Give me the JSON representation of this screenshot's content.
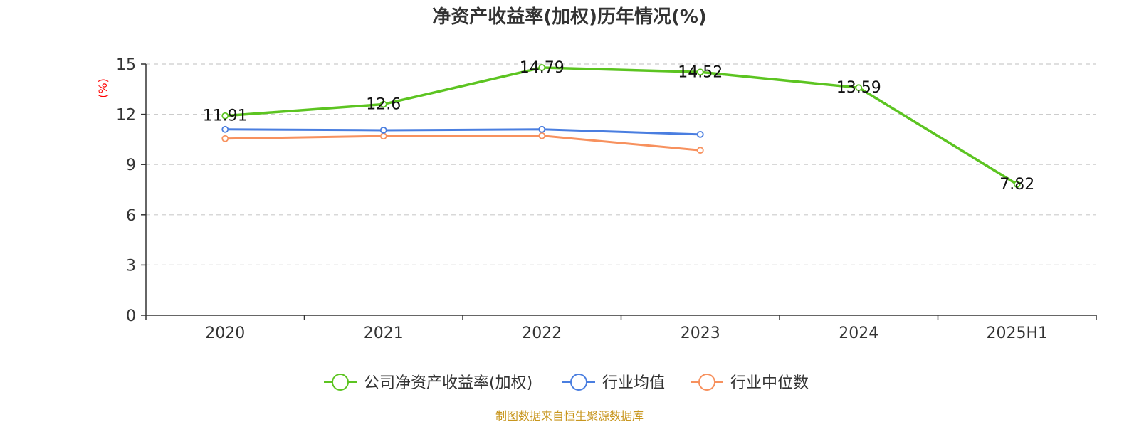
{
  "chart_data": {
    "type": "line",
    "title": "净资产收益率(加权)历年情况(%)",
    "ylabel": "(%)",
    "xlabel": "",
    "categories": [
      "2020",
      "2021",
      "2022",
      "2023",
      "2024",
      "2025H1"
    ],
    "ylim": [
      0,
      15
    ],
    "yticks": [
      0,
      3,
      6,
      9,
      12,
      15
    ],
    "grid": true,
    "legend_position": "bottom",
    "series": [
      {
        "name": "公司净资产收益率(加权)",
        "color": "#5cc421",
        "values": [
          11.91,
          12.6,
          14.79,
          14.52,
          13.59,
          7.82
        ],
        "labels": [
          "11.91",
          "12.6",
          "14.79",
          "14.52",
          "13.59",
          "7.82"
        ]
      },
      {
        "name": "行业均值",
        "color": "#4a7ee0",
        "values": [
          11.1,
          11.05,
          11.1,
          10.8,
          null,
          null
        ]
      },
      {
        "name": "行业中位数",
        "color": "#f7915e",
        "values": [
          10.55,
          10.7,
          10.72,
          9.85,
          null,
          null
        ]
      }
    ],
    "source": "制图数据来自恒生聚源数据库"
  }
}
